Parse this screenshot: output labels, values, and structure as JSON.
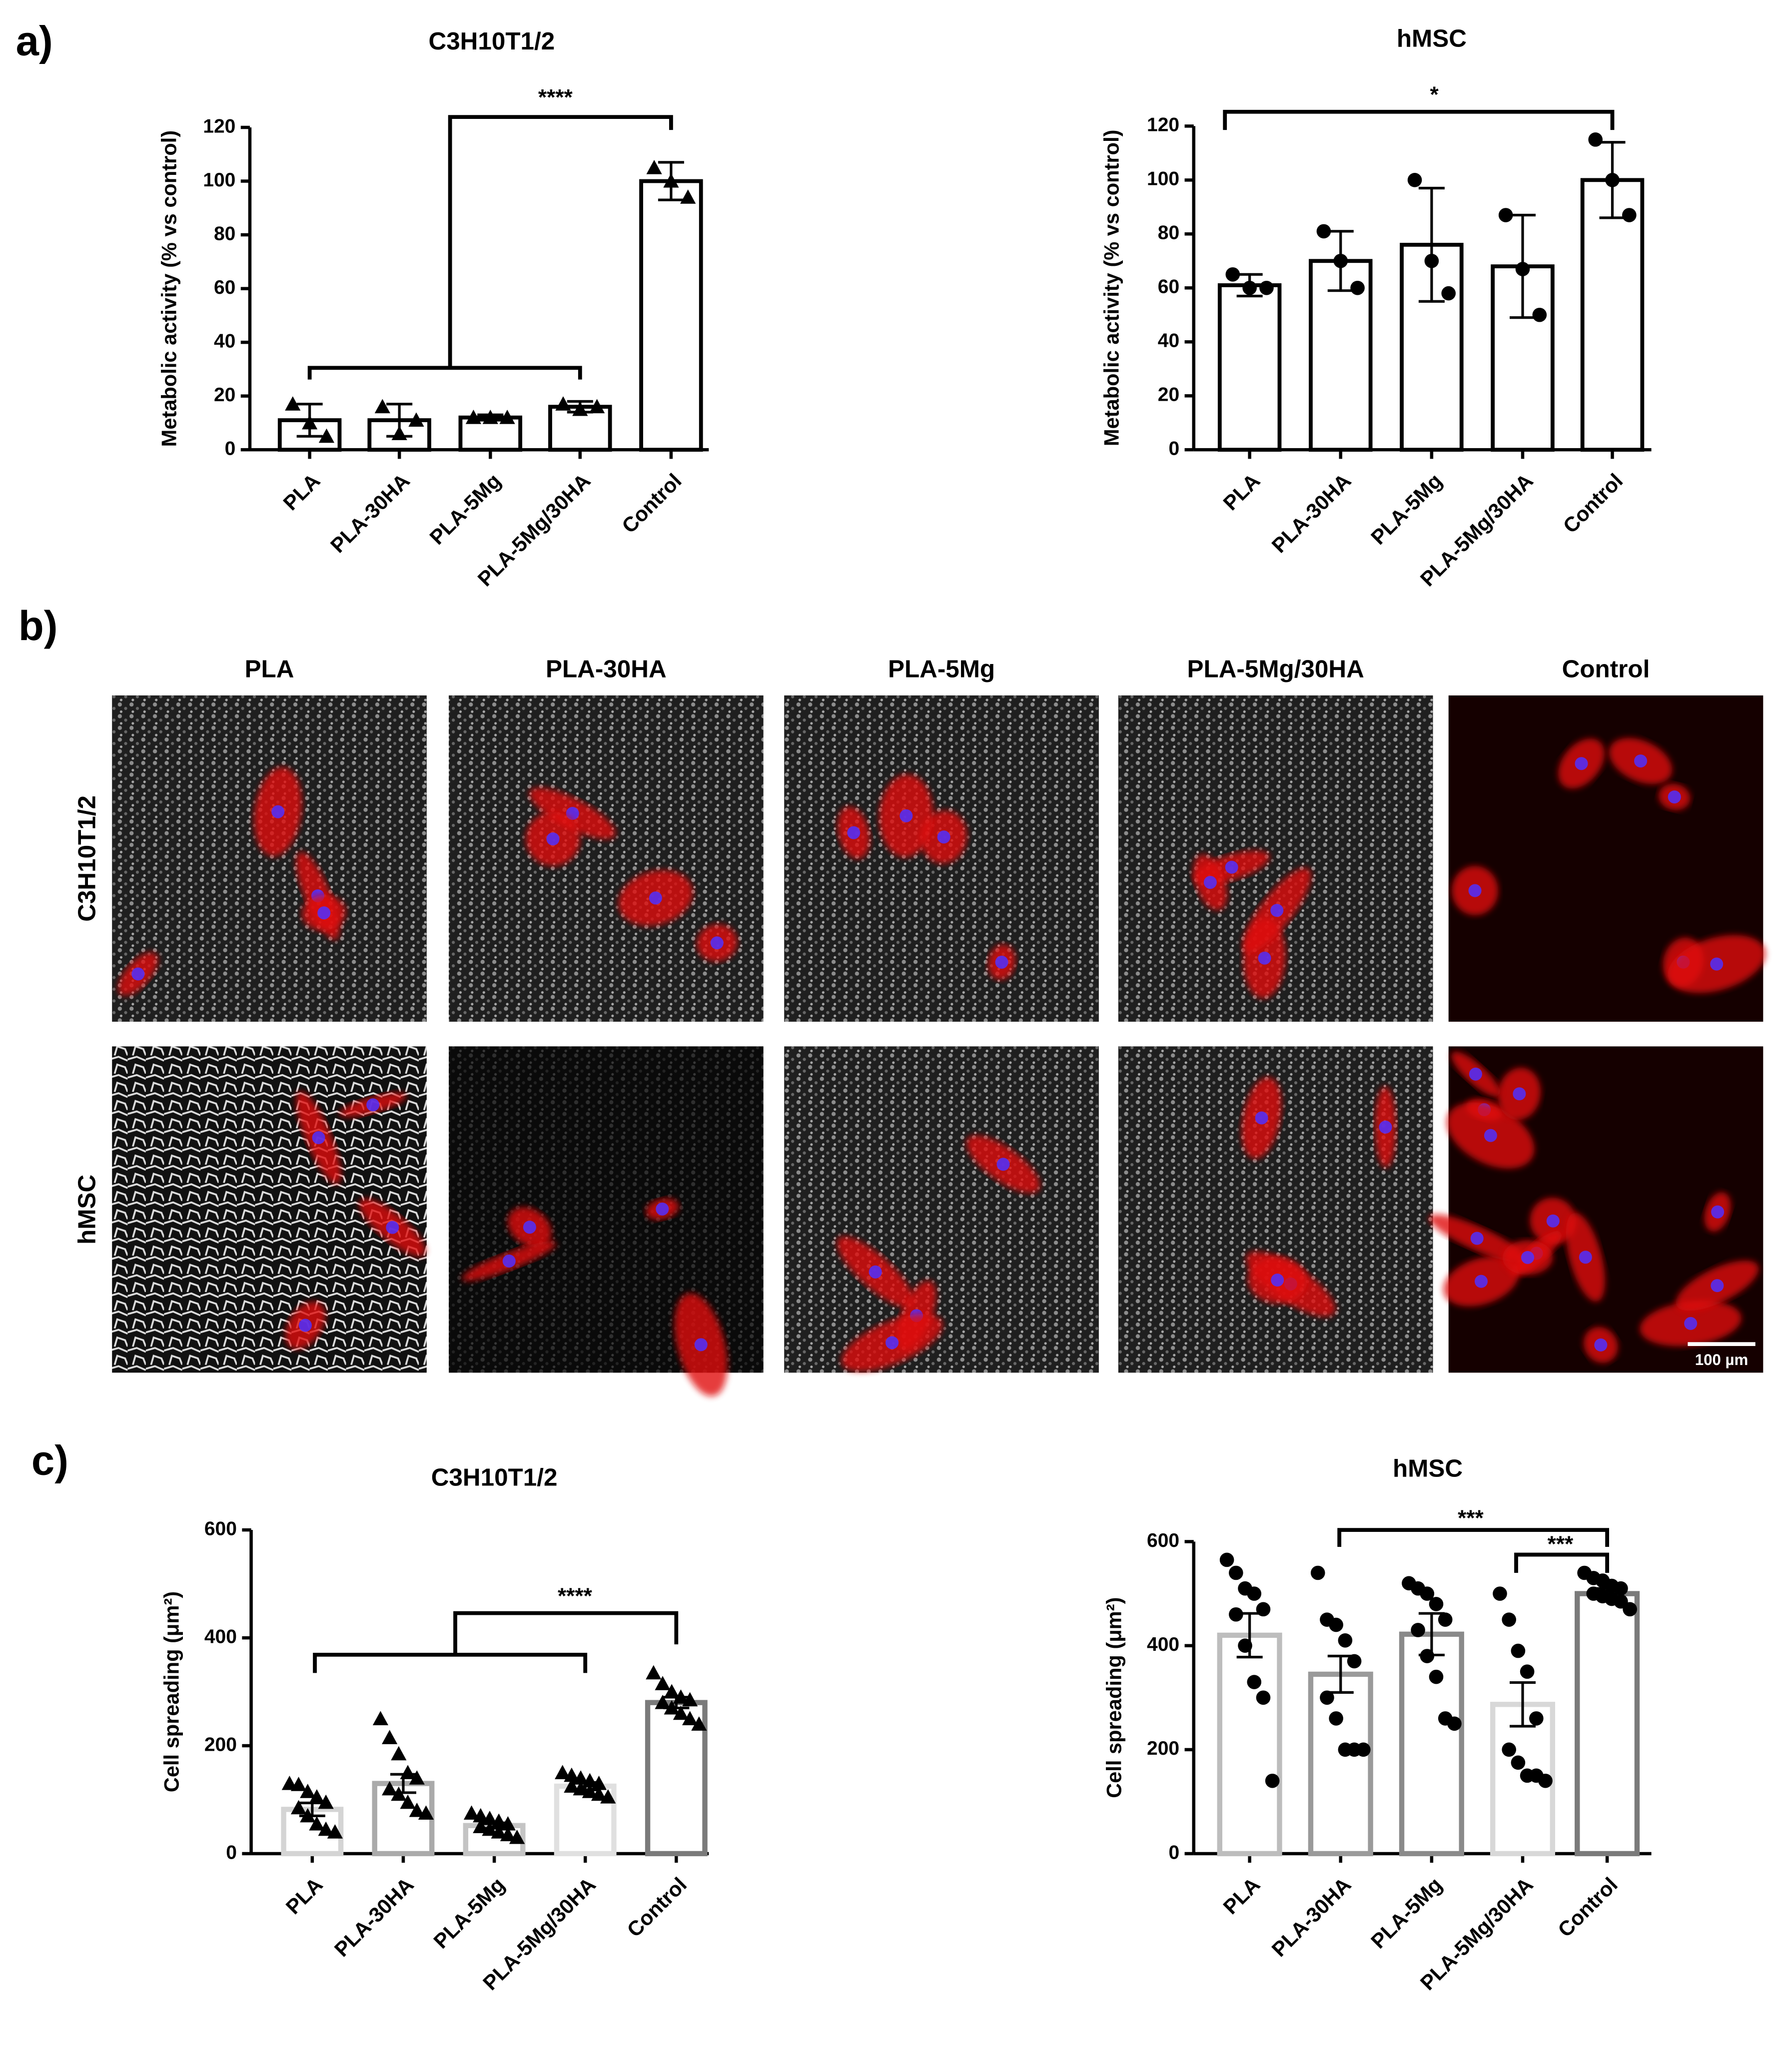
{
  "figure": {
    "panel_labels": [
      "a)",
      "b)",
      "c)"
    ],
    "image_grid": {
      "columns": [
        "PLA",
        "PLA-30HA",
        "PLA-5Mg",
        "PLA-5Mg/30HA",
        "Control"
      ],
      "rows": [
        "C3H10T1/2",
        "hMSC"
      ],
      "scale_bar": "100 µm"
    }
  },
  "chart_data": [
    {
      "type": "bar",
      "title": "C3H10T1/2",
      "y_label": "Metabolic activity (% vs control)",
      "categories": [
        "PLA",
        "PLA-30HA",
        "PLA-5Mg",
        "PLA-5Mg/30HA",
        "Control"
      ],
      "values": [
        11,
        11,
        12,
        16,
        100
      ],
      "errors": [
        6,
        6,
        1,
        2,
        7
      ],
      "points": [
        [
          17,
          10,
          5
        ],
        [
          16,
          6,
          11
        ],
        [
          12,
          12,
          12
        ],
        [
          17,
          15,
          16
        ],
        [
          105,
          100,
          94
        ]
      ],
      "marker": "triangle",
      "colors": [
        "#000000",
        "#000000",
        "#000000",
        "#000000",
        "#000000"
      ],
      "ylim": [
        0,
        120
      ],
      "yticks": [
        0,
        20,
        40,
        60,
        80,
        100,
        120
      ],
      "annotations": [
        "****"
      ]
    },
    {
      "type": "bar",
      "title": "hMSC",
      "y_label": "Metabolic activity (% vs control)",
      "categories": [
        "PLA",
        "PLA-30HA",
        "PLA-5Mg",
        "PLA-5Mg/30HA",
        "Control"
      ],
      "values": [
        61,
        70,
        76,
        68,
        100
      ],
      "errors": [
        4,
        11,
        21,
        19,
        14
      ],
      "points": [
        [
          65,
          60,
          60
        ],
        [
          81,
          70,
          60
        ],
        [
          100,
          70,
          58
        ],
        [
          87,
          67,
          50
        ],
        [
          115,
          100,
          87
        ]
      ],
      "marker": "circle",
      "colors": [
        "#000000",
        "#000000",
        "#000000",
        "#000000",
        "#000000"
      ],
      "ylim": [
        0,
        120
      ],
      "yticks": [
        0,
        20,
        40,
        60,
        80,
        100,
        120
      ],
      "annotations": [
        "*"
      ]
    },
    {
      "type": "bar",
      "title": "C3H10T1/2",
      "y_label": "Cell spreading (μm²)",
      "categories": [
        "PLA",
        "PLA-30HA",
        "PLA-5Mg",
        "PLA-5Mg/30HA",
        "Control"
      ],
      "values": [
        82,
        130,
        52,
        125,
        280
      ],
      "errors": [
        12,
        17,
        5,
        7,
        10
      ],
      "points": [
        [
          130,
          128,
          115,
          105,
          95,
          85,
          70,
          55,
          45,
          40
        ],
        [
          250,
          215,
          185,
          150,
          140,
          120,
          110,
          95,
          80,
          75
        ],
        [
          75,
          70,
          65,
          60,
          55,
          50,
          45,
          40,
          35,
          30
        ],
        [
          150,
          145,
          140,
          135,
          130,
          125,
          120,
          115,
          110,
          105
        ],
        [
          335,
          315,
          300,
          290,
          285,
          280,
          270,
          260,
          250,
          240
        ]
      ],
      "marker": "triangle",
      "colors": [
        "#d4d4d4",
        "#aaaaaa",
        "#c4c4c4",
        "#e0e0e0",
        "#7a7a7a"
      ],
      "ylim": [
        0,
        600
      ],
      "yticks": [
        0,
        200,
        400,
        600
      ],
      "annotations": [
        "****"
      ]
    },
    {
      "type": "bar",
      "title": "hMSC",
      "y_label": "Cell spreading (μm²)",
      "categories": [
        "PLA",
        "PLA-30HA",
        "PLA-5Mg",
        "PLA-5Mg/30HA",
        "Control"
      ],
      "values": [
        420,
        345,
        422,
        287,
        500
      ],
      "errors": [
        42,
        35,
        40,
        42,
        10
      ],
      "points": [
        [
          565,
          540,
          510,
          500,
          470,
          460,
          400,
          330,
          300,
          140
        ],
        [
          540,
          450,
          440,
          410,
          370,
          300,
          260,
          200,
          200,
          200
        ],
        [
          520,
          510,
          500,
          480,
          450,
          430,
          380,
          340,
          260,
          250
        ],
        [
          500,
          450,
          390,
          350,
          260,
          200,
          175,
          150,
          150,
          140
        ],
        [
          540,
          530,
          525,
          515,
          510,
          500,
          495,
          490,
          485,
          470
        ]
      ],
      "marker": "circle",
      "colors": [
        "#bdbdbd",
        "#9a9a9a",
        "#8a8a8a",
        "#d8d8d8",
        "#7a7a7a"
      ],
      "ylim": [
        0,
        600
      ],
      "yticks": [
        0,
        200,
        400,
        600
      ],
      "annotations": [
        "***",
        "***"
      ]
    }
  ]
}
